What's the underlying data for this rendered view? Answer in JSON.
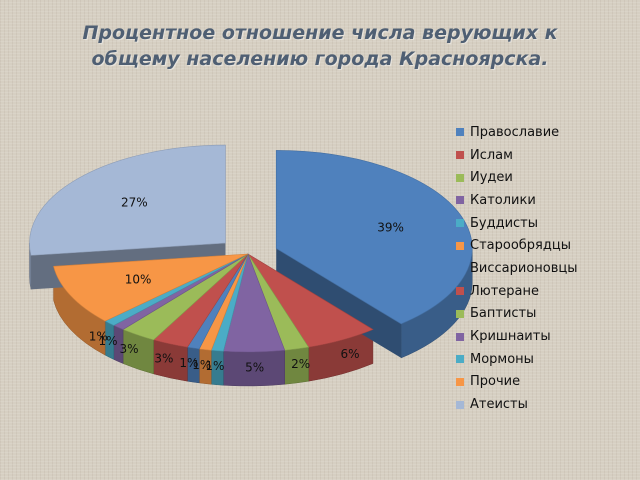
{
  "title_lines": [
    "Процентное отношение числа верующих к",
    "общему населению города Красноярска."
  ],
  "chart_data": {
    "type": "pie",
    "style": "3d-exploded",
    "title": "Процентное отношение числа верующих к общему населению города Красноярска.",
    "legend_position": "right",
    "slices": [
      {
        "label": "Православие",
        "value": 39,
        "display": "39%",
        "color": "#4f81bd"
      },
      {
        "label": "Ислам",
        "value": 6,
        "display": "6%",
        "color": "#c0504d"
      },
      {
        "label": "Иудеи",
        "value": 2,
        "display": "2%",
        "color": "#9bbb59"
      },
      {
        "label": "Католики",
        "value": 5,
        "display": "5%",
        "color": "#8064a2"
      },
      {
        "label": "Буддисты",
        "value": 1,
        "display": "1%",
        "color": "#4bacc6"
      },
      {
        "label": "Старообрядцы",
        "value": 1,
        "display": "1%",
        "color": "#f79646"
      },
      {
        "label": "Виссарионовцы",
        "value": 1,
        "display": "1%",
        "color": "#4f81bd"
      },
      {
        "label": "Лютеране",
        "value": 3,
        "display": "3%",
        "color": "#c0504d"
      },
      {
        "label": "Баптисты",
        "value": 3,
        "display": "3%",
        "color": "#9bbb59"
      },
      {
        "label": "Кришнаиты",
        "value": 1,
        "display": "1%",
        "color": "#8064a2"
      },
      {
        "label": "Мормоны",
        "value": 1,
        "display": "1%",
        "color": "#4bacc6"
      },
      {
        "label": "Прочие",
        "value": 10,
        "display": "10%",
        "color": "#f79646"
      },
      {
        "label": "Атеисты",
        "value": 27,
        "display": "27%",
        "color": "#a5b8d6"
      }
    ]
  }
}
